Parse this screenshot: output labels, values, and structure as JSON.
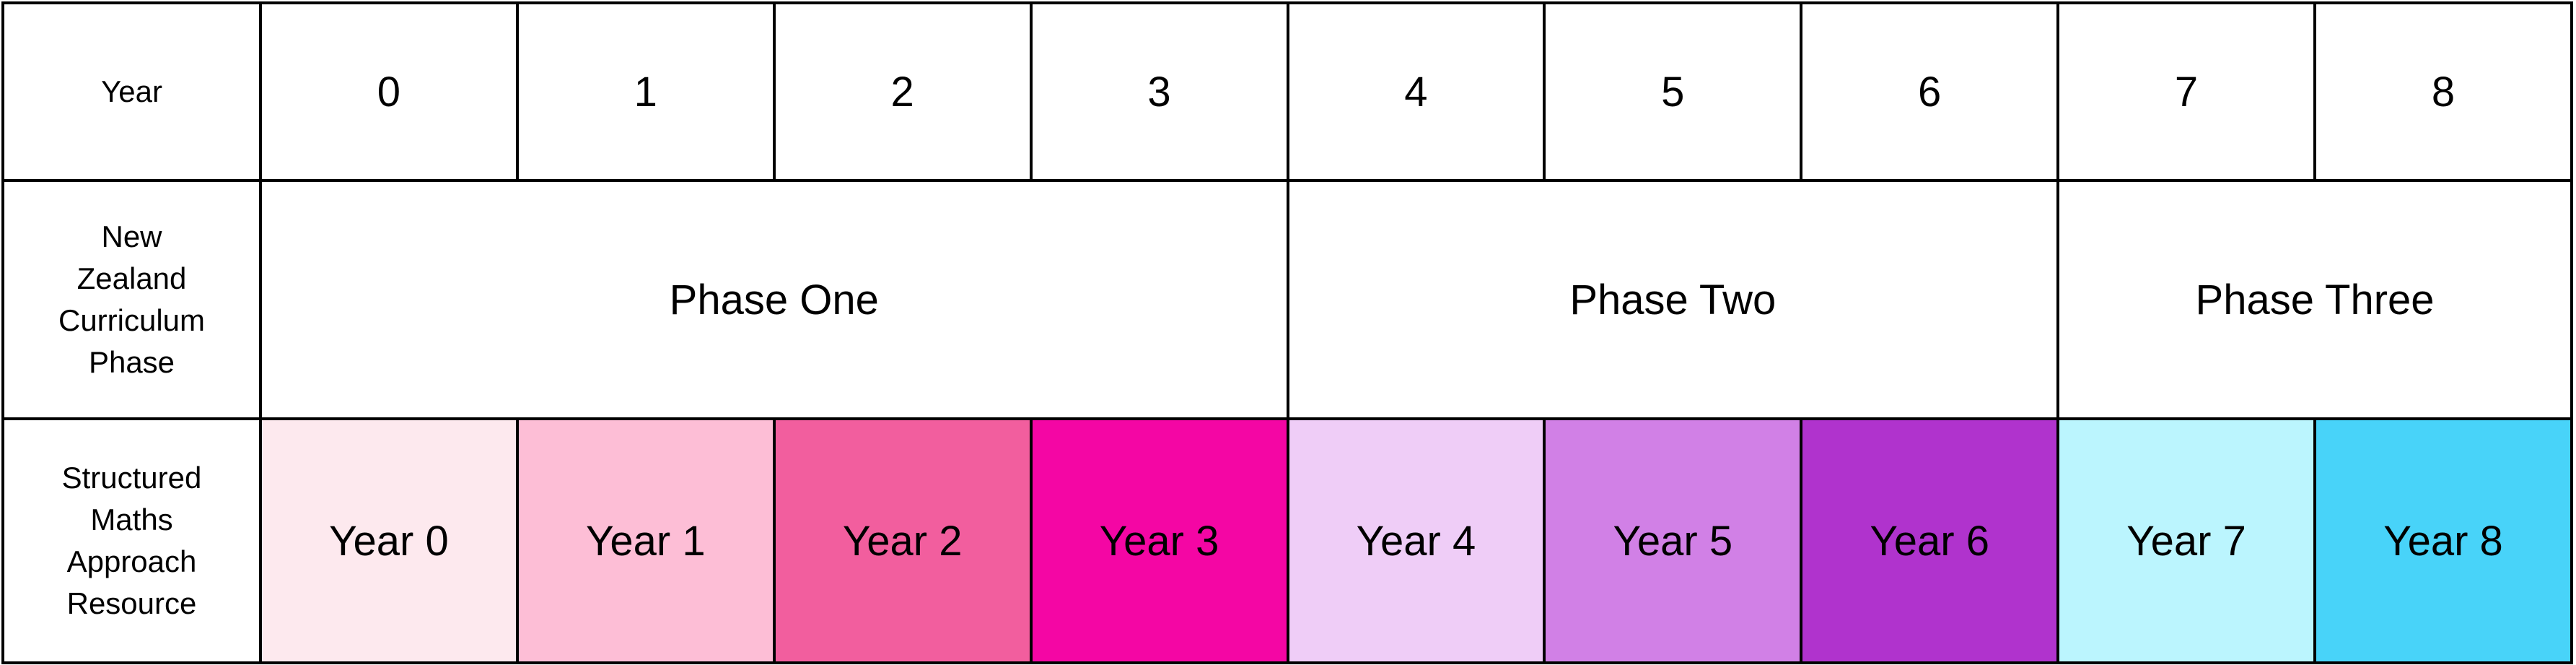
{
  "rows": {
    "year": {
      "label": "Year",
      "values": [
        "0",
        "1",
        "2",
        "3",
        "4",
        "5",
        "6",
        "7",
        "8"
      ]
    },
    "phase": {
      "label_lines": [
        "New",
        "Zealand",
        "Curriculum",
        "Phase"
      ],
      "phases": [
        {
          "label": "Phase One",
          "span": 4
        },
        {
          "label": "Phase Two",
          "span": 3
        },
        {
          "label": "Phase Three",
          "span": 2
        }
      ]
    },
    "resource": {
      "label_lines": [
        "Structured",
        "Maths",
        "Approach",
        "Resource"
      ],
      "items": [
        {
          "label": "Year 0",
          "color": "#fde9ee"
        },
        {
          "label": "Year 1",
          "color": "#fdbed6"
        },
        {
          "label": "Year 2",
          "color": "#f25e9e"
        },
        {
          "label": "Year 3",
          "color": "#f406a4"
        },
        {
          "label": "Year 4",
          "color": "#efcdf7"
        },
        {
          "label": "Year 5",
          "color": "#d180e6"
        },
        {
          "label": "Year 6",
          "color": "#b033cd"
        },
        {
          "label": "Year 7",
          "color": "#bbf5fe"
        },
        {
          "label": "Year 8",
          "color": "#48d3f9"
        }
      ]
    }
  }
}
